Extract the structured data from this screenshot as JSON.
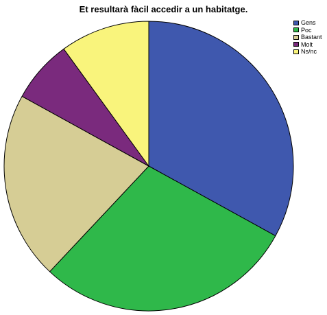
{
  "chart_data": {
    "type": "pie",
    "title": "Et resultarà fàcil accedir a un habitatge.",
    "legend_position": "top-right",
    "start": "12 o'clock",
    "direction": "clockwise",
    "slices": [
      {
        "label": "Gens",
        "value": 33,
        "color": "#3f58ae"
      },
      {
        "label": "Poc",
        "value": 29,
        "color": "#2fb84a"
      },
      {
        "label": "Bastant",
        "value": 21,
        "color": "#d6cd95"
      },
      {
        "label": "Molt",
        "value": 7,
        "color": "#7a2a7d"
      },
      {
        "label": "Ns/nc",
        "value": 10,
        "color": "#f9f47c"
      }
    ]
  }
}
